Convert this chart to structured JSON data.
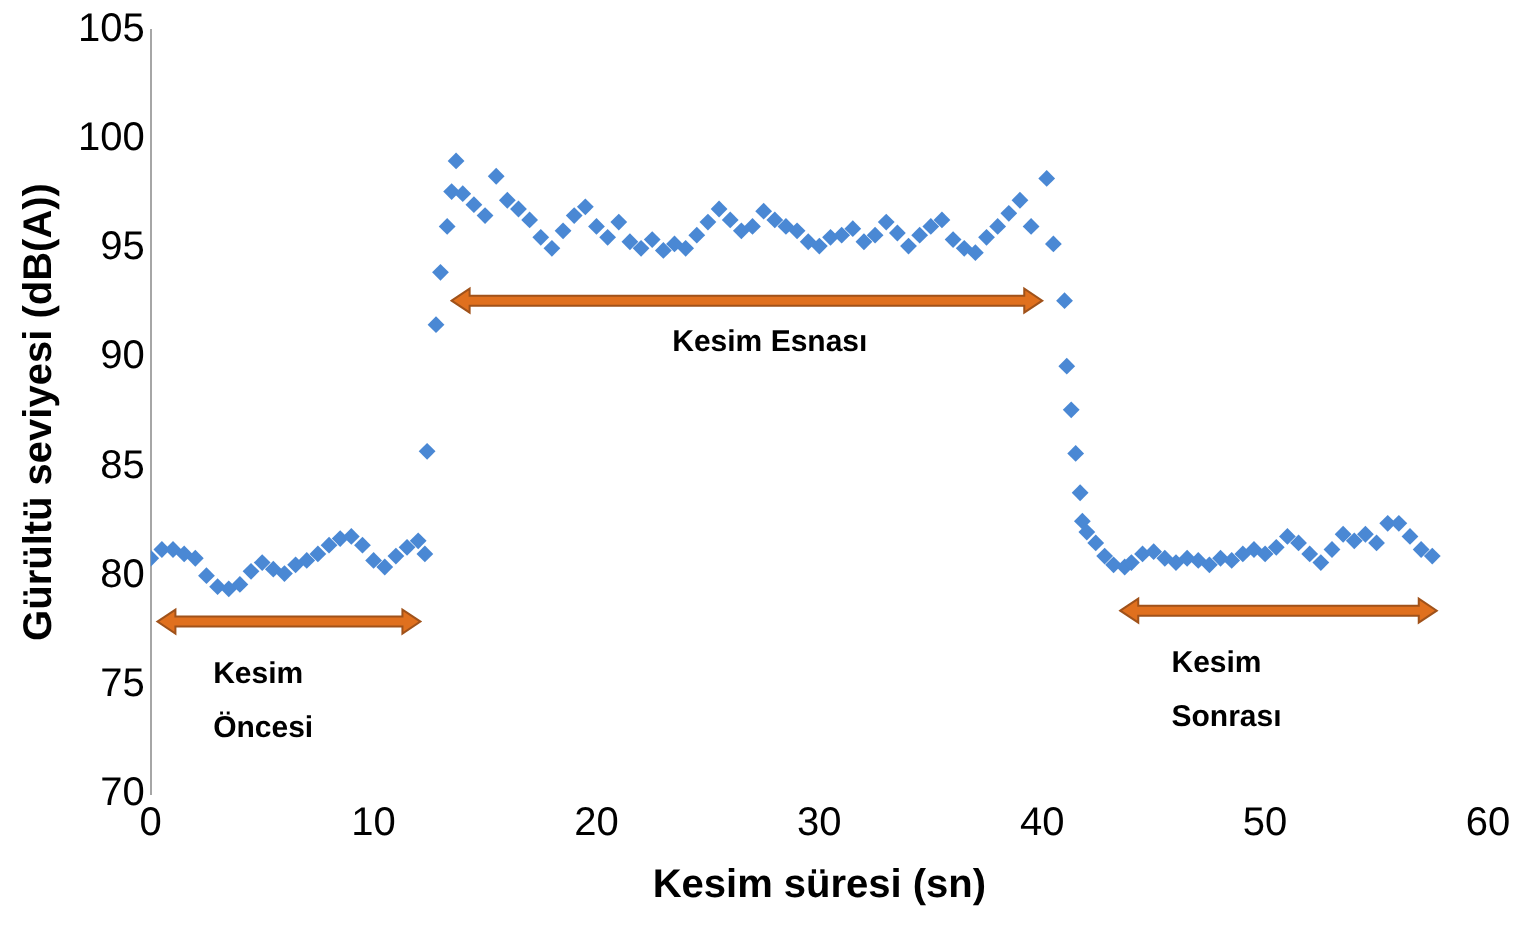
{
  "chart_data": {
    "type": "scatter",
    "xlabel": "Kesim süresi (sn)",
    "ylabel": "Gürültü seviyesi (dB(A))",
    "xlim": [
      0,
      60
    ],
    "xticks": [
      0,
      10,
      20,
      30,
      40,
      50,
      60
    ],
    "ylim": [
      70,
      105
    ],
    "yticks": [
      70,
      75,
      80,
      85,
      90,
      95,
      100,
      105
    ],
    "grid": false,
    "legend": false,
    "marker": "diamond",
    "annotations": [
      "Kesim Öncesi",
      "Kesim Esnası",
      "Kesim Sonrası"
    ],
    "series": [
      {
        "color": "#4a88d4",
        "x": [
          0,
          0.5,
          1,
          1.5,
          2,
          2.5,
          3,
          3.5,
          4,
          4.5,
          5,
          5.5,
          6,
          6.5,
          7,
          7.5,
          8,
          8.5,
          9,
          9.5,
          10,
          10.5,
          11,
          11.5,
          12,
          12.3,
          12.4,
          12.8,
          13,
          13.3,
          13.5,
          13.7,
          14,
          14.5,
          15,
          15.5,
          16,
          16.5,
          17,
          17.5,
          18,
          18.5,
          19,
          19.5,
          20,
          20.5,
          21,
          21.5,
          22,
          22.5,
          23,
          23.5,
          24,
          24.5,
          25,
          25.5,
          26,
          26.5,
          27,
          27.5,
          28,
          28.5,
          29,
          29.5,
          30,
          30.5,
          31,
          31.5,
          32,
          32.5,
          33,
          33.5,
          34,
          34.5,
          35,
          35.5,
          36,
          36.5,
          37,
          37.5,
          38,
          38.5,
          39,
          39.5,
          40.2,
          40.5,
          41,
          41.1,
          41.3,
          41.5,
          41.7,
          41.8,
          42,
          42.4,
          42.8,
          43.2,
          43.7,
          44,
          44.5,
          45,
          45.5,
          46,
          46.5,
          47,
          47.5,
          48,
          48.5,
          49,
          49.5,
          50,
          50.5,
          51,
          51.5,
          52,
          52.5,
          53,
          53.5,
          54,
          54.5,
          55,
          55.5,
          56,
          56.5,
          57,
          57.5
        ],
        "values": [
          80.8,
          81.2,
          81.2,
          81.0,
          80.8,
          80.0,
          79.5,
          79.4,
          79.6,
          80.2,
          80.6,
          80.3,
          80.1,
          80.5,
          80.7,
          81.0,
          81.4,
          81.7,
          81.8,
          81.4,
          80.7,
          80.4,
          80.9,
          81.3,
          81.6,
          81.0,
          85.7,
          91.5,
          93.9,
          96.0,
          97.6,
          99.0,
          97.5,
          97.0,
          96.5,
          98.3,
          97.2,
          96.8,
          96.3,
          95.5,
          95.0,
          95.8,
          96.5,
          96.9,
          96.0,
          95.5,
          96.2,
          95.3,
          95.0,
          95.4,
          94.9,
          95.2,
          95.0,
          95.6,
          96.2,
          96.8,
          96.3,
          95.8,
          96.0,
          96.7,
          96.3,
          96.0,
          95.8,
          95.3,
          95.1,
          95.5,
          95.6,
          95.9,
          95.3,
          95.6,
          96.2,
          95.7,
          95.1,
          95.6,
          96.0,
          96.3,
          95.4,
          95.0,
          94.8,
          95.5,
          96.0,
          96.6,
          97.2,
          96.0,
          98.2,
          95.2,
          92.6,
          89.6,
          87.6,
          85.6,
          83.8,
          82.5,
          82.0,
          81.5,
          80.9,
          80.5,
          80.4,
          80.6,
          81.0,
          81.1,
          80.8,
          80.6,
          80.8,
          80.7,
          80.5,
          80.8,
          80.7,
          81.0,
          81.2,
          81.0,
          81.3,
          81.8,
          81.5,
          81.0,
          80.6,
          81.2,
          81.9,
          81.6,
          81.9,
          81.5,
          82.4,
          82.4,
          81.8,
          81.2,
          80.9
        ]
      }
    ]
  }
}
